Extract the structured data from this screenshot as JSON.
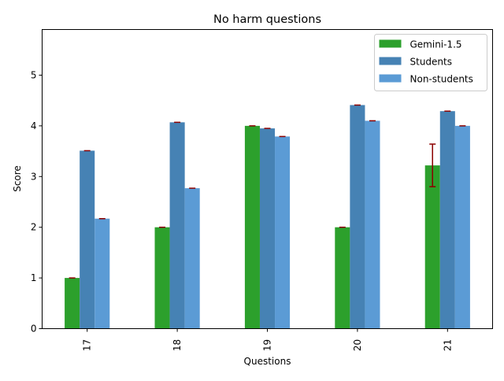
{
  "chart_data": {
    "type": "bar",
    "title": "No harm questions",
    "xlabel": "Questions",
    "ylabel": "Score",
    "categories": [
      "17",
      "18",
      "19",
      "20",
      "21"
    ],
    "ylim": [
      0,
      5.9
    ],
    "yticks": [
      0,
      1,
      2,
      3,
      4,
      5
    ],
    "legend_position": "top-right",
    "error_bar_color": "#8b0000",
    "series": [
      {
        "name": "Gemini-1.5",
        "color": "#2ca02c",
        "values": [
          1.0,
          2.0,
          4.0,
          2.0,
          3.22
        ],
        "errors": [
          0,
          0,
          0,
          0,
          0.42
        ]
      },
      {
        "name": "Students",
        "color": "#4682b4",
        "values": [
          3.51,
          4.07,
          3.95,
          4.41,
          4.29
        ],
        "errors": [
          0,
          0,
          0,
          0,
          0
        ]
      },
      {
        "name": "Non-students",
        "color": "#5b9bd5",
        "values": [
          2.17,
          2.77,
          3.79,
          4.1,
          4.0
        ],
        "errors": [
          0,
          0,
          0,
          0,
          0
        ]
      }
    ]
  }
}
